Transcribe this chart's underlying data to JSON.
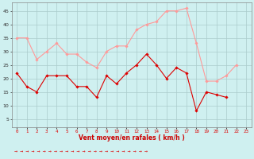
{
  "x": [
    0,
    1,
    2,
    3,
    4,
    5,
    6,
    7,
    8,
    9,
    10,
    11,
    12,
    13,
    14,
    15,
    16,
    17,
    18,
    19,
    20,
    21,
    22,
    23
  ],
  "vent_moyen": [
    22,
    17,
    15,
    21,
    21,
    21,
    17,
    17,
    13,
    21,
    18,
    22,
    25,
    29,
    25,
    20,
    24,
    22,
    8,
    15,
    14,
    13,
    null,
    null
  ],
  "rafales": [
    35,
    35,
    27,
    30,
    33,
    29,
    29,
    26,
    24,
    30,
    32,
    32,
    38,
    40,
    41,
    45,
    45,
    46,
    33,
    19,
    19,
    21,
    25,
    null
  ],
  "bg_color": "#cff0f0",
  "grid_color": "#aacccc",
  "line_moyen_color": "#dd0000",
  "line_rafales_color": "#ff9999",
  "xlabel": "Vent moyen/en rafales ( km/h )",
  "xlabel_color": "#cc0000",
  "yticks": [
    5,
    10,
    15,
    20,
    25,
    30,
    35,
    40,
    45
  ],
  "ylim": [
    2,
    48
  ],
  "xlim": [
    -0.5,
    23.5
  ]
}
